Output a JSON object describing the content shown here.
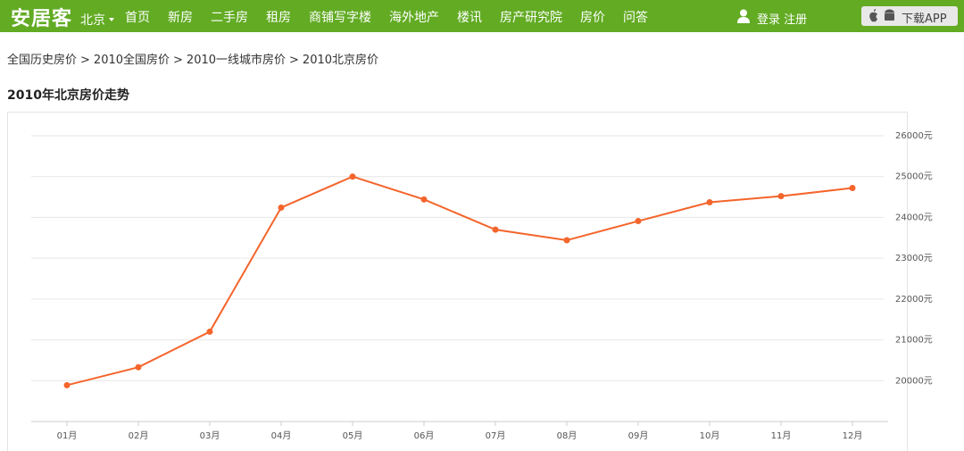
{
  "header": {
    "logo": "安居客",
    "city": "北京",
    "nav": [
      "首页",
      "新房",
      "二手房",
      "租房",
      "商铺写字楼",
      "海外地产",
      "楼讯",
      "房产研究院",
      "房价",
      "问答"
    ],
    "login": "登录 注册",
    "app": "下载APP"
  },
  "breadcrumb": {
    "items": [
      "全国历史房价",
      "2010全国房价",
      "2010一线城市房价",
      "2010北京房价"
    ],
    "separator": ">"
  },
  "heading": "2010年北京房价走势",
  "chart_data": {
    "type": "line",
    "categories": [
      "01月",
      "02月",
      "03月",
      "04月",
      "05月",
      "06月",
      "07月",
      "08月",
      "09月",
      "10月",
      "11月",
      "12月"
    ],
    "series": [
      {
        "name": "2010年北京房价",
        "color": "#f4652c",
        "values": [
          19890,
          20330,
          21200,
          24240,
          25000,
          24440,
          23700,
          23440,
          23910,
          24370,
          24520,
          24720
        ]
      }
    ],
    "ylim": [
      19000,
      26000
    ],
    "yticks": [
      {
        "value": 20000,
        "label": "20000元"
      },
      {
        "value": 21000,
        "label": "21000元"
      },
      {
        "value": 22000,
        "label": "22000元"
      },
      {
        "value": 23000,
        "label": "23000元"
      },
      {
        "value": 24000,
        "label": "24000元"
      },
      {
        "value": 25000,
        "label": "25000元"
      },
      {
        "value": 26000,
        "label": "26000元"
      }
    ],
    "grid": true
  }
}
